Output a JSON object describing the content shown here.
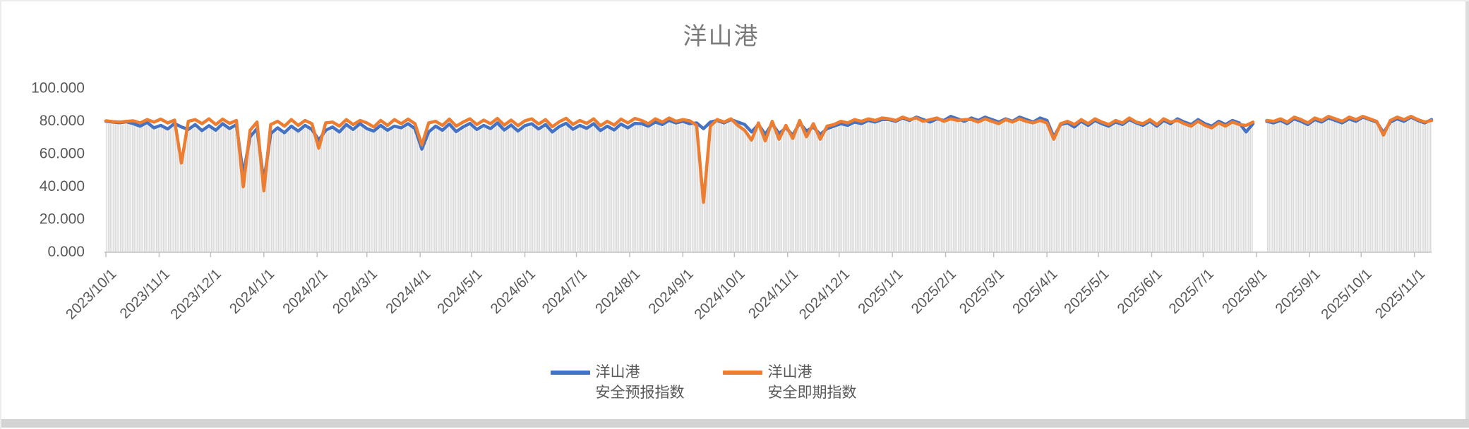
{
  "title": "洋山港",
  "colors": {
    "forecast_line": "#4472C4",
    "spot_line": "#ED7D31",
    "columns": "#DADADA",
    "axis": "#BFBFBF",
    "tick_text": "#595959",
    "title_text": "#7A7A7A",
    "window_edge": "#D3D3D3"
  },
  "legend": [
    {
      "line1": "洋山港",
      "line2": "安全预报指数"
    },
    {
      "line1": "洋山港",
      "line2": "安全即期指数"
    }
  ],
  "chart_data": {
    "type": "line",
    "title": "洋山港",
    "xlabel": "",
    "ylabel": "",
    "ylim": [
      0,
      100
    ],
    "grid": false,
    "legend_position": "bottom",
    "yticks": [
      {
        "label": "0.000",
        "value": 0
      },
      {
        "label": "20.000",
        "value": 20
      },
      {
        "label": "40.000",
        "value": 40
      },
      {
        "label": "60.000",
        "value": 60
      },
      {
        "label": "80.000",
        "value": 80
      },
      {
        "label": "100.000",
        "value": 100
      }
    ],
    "x_unit": "days since 2023/10/1",
    "x_range_days": [
      0,
      772
    ],
    "point_interval_days": 4,
    "x_ticks": [
      {
        "label": "2023/10/1",
        "day": 0
      },
      {
        "label": "2023/11/1",
        "day": 31
      },
      {
        "label": "2023/12/1",
        "day": 61
      },
      {
        "label": "2024/1/1",
        "day": 92
      },
      {
        "label": "2024/2/1",
        "day": 123
      },
      {
        "label": "2024/3/1",
        "day": 152
      },
      {
        "label": "2024/4/1",
        "day": 183
      },
      {
        "label": "2024/5/1",
        "day": 213
      },
      {
        "label": "2024/6/1",
        "day": 244
      },
      {
        "label": "2024/7/1",
        "day": 274
      },
      {
        "label": "2024/8/1",
        "day": 305
      },
      {
        "label": "2024/9/1",
        "day": 336
      },
      {
        "label": "2024/10/1",
        "day": 366
      },
      {
        "label": "2024/11/1",
        "day": 397
      },
      {
        "label": "2024/12/1",
        "day": 427
      },
      {
        "label": "2025/1/1",
        "day": 458
      },
      {
        "label": "2025/2/1",
        "day": 489
      },
      {
        "label": "2025/3/1",
        "day": 517
      },
      {
        "label": "2025/4/1",
        "day": 548
      },
      {
        "label": "2025/5/1",
        "day": 578
      },
      {
        "label": "2025/6/1",
        "day": 609
      },
      {
        "label": "2025/7/1",
        "day": 639
      },
      {
        "label": "2025/8/1",
        "day": 670
      },
      {
        "label": "2025/9/1",
        "day": 701
      },
      {
        "label": "2025/10/1",
        "day": 731
      },
      {
        "label": "2025/11/1",
        "day": 762
      }
    ],
    "columns": {
      "color": "#DADADA",
      "note": "dense daily gray columns under the lines, top tracking just below the lower of the two series; gap (no data) around 2025/8/3"
    },
    "series": [
      {
        "name": "洋山港 安全预报指数",
        "color": "#4472C4",
        "values": [
          79.5,
          79,
          78.6,
          79.2,
          78,
          76.5,
          78.8,
          75.5,
          77,
          74.8,
          78.2,
          76,
          74.5,
          77.5,
          73.8,
          76.8,
          74,
          78,
          75,
          77.5,
          47,
          70,
          75,
          42.5,
          72,
          75.5,
          72.5,
          76.5,
          73.5,
          77,
          74.5,
          68,
          74,
          76,
          73,
          77.5,
          74.5,
          78,
          75,
          73.5,
          77,
          74,
          76.5,
          75.5,
          78,
          75,
          62.5,
          73,
          76.5,
          74,
          77.8,
          73.2,
          76,
          78.2,
          74.5,
          77,
          75,
          78.5,
          74.2,
          77.2,
          73.5,
          76.8,
          78,
          74.8,
          77.5,
          73,
          76.2,
          78.3,
          74.6,
          77,
          75.2,
          78,
          73.8,
          76.5,
          74.2,
          77.8,
          75.5,
          78.2,
          78,
          76.5,
          79,
          77.5,
          80,
          78.5,
          79.5,
          78,
          78.5,
          75,
          79,
          80,
          78.5,
          80.5,
          79,
          77.5,
          73,
          77.5,
          71.5,
          78,
          72,
          75.5,
          71,
          78.5,
          73.5,
          76,
          71.5,
          75,
          76.5,
          78,
          77,
          79,
          78,
          80,
          79,
          80.5,
          80.5,
          79.5,
          81.5,
          80,
          82,
          80.5,
          79,
          81,
          80,
          82.5,
          81,
          79.5,
          81.5,
          80,
          82,
          80.5,
          79,
          81,
          79.5,
          82,
          80.5,
          79,
          81.5,
          80,
          70,
          77.5,
          78.5,
          76,
          79.5,
          77,
          80,
          78,
          76.5,
          79,
          77.5,
          80.5,
          78.5,
          77,
          79.5,
          76.5,
          80,
          78,
          81,
          79,
          77.5,
          80.5,
          78,
          76.5,
          79.5,
          77.5,
          80,
          78.5,
          73,
          78,
          null,
          79.5,
          78.5,
          80,
          78,
          81,
          79.5,
          77.5,
          80.5,
          79,
          81.5,
          80,
          78.5,
          81,
          79.5,
          82,
          80.5,
          79,
          72.5,
          79,
          81,
          79.5,
          82,
          80,
          78.5,
          80.5
        ]
      },
      {
        "name": "洋山港 安全即期指数",
        "color": "#ED7D31",
        "values": [
          79.8,
          79.3,
          79,
          79.5,
          79.8,
          78.5,
          80.5,
          79,
          80.8,
          78.5,
          80.2,
          54,
          79.5,
          80.5,
          78,
          81,
          77.5,
          80.8,
          78.2,
          80,
          39.5,
          74,
          79,
          37,
          77.5,
          79.5,
          76.5,
          80.5,
          77,
          80,
          78,
          63,
          78.5,
          79,
          76.5,
          80.5,
          77.5,
          80,
          78.5,
          76,
          80,
          77,
          80.5,
          78,
          80.8,
          78,
          65,
          78.5,
          79.5,
          77,
          80.8,
          76.5,
          79,
          81,
          77.5,
          80.2,
          78,
          81.2,
          77.2,
          80.2,
          76.8,
          79.8,
          81,
          77.8,
          80.5,
          76.2,
          79.2,
          81.3,
          77.6,
          80,
          78.2,
          81,
          76.8,
          79.5,
          77.2,
          80.8,
          78.5,
          81.2,
          80,
          78,
          81,
          79,
          81.5,
          79.5,
          80.5,
          79.8,
          77,
          30,
          76.5,
          80.5,
          79,
          81,
          77,
          74,
          68,
          78.5,
          67.5,
          79.5,
          68.5,
          77,
          69,
          80,
          70,
          78,
          68.5,
          76.5,
          77.5,
          79.5,
          78.5,
          80.5,
          79.5,
          81,
          80,
          81.5,
          81,
          80,
          82,
          80.5,
          81.5,
          79.5,
          80.5,
          81.5,
          79.5,
          81,
          80,
          80.5,
          80.5,
          79,
          81,
          79.5,
          78,
          80.5,
          79,
          81,
          79.5,
          78.5,
          80,
          78.5,
          68.5,
          78,
          79.5,
          77.5,
          80.5,
          78,
          81,
          79,
          77.5,
          80,
          78.5,
          81.5,
          79,
          78,
          80.5,
          77.5,
          81,
          79,
          80,
          78,
          76.5,
          79.5,
          77,
          75.5,
          78.5,
          76.5,
          79,
          77.5,
          77,
          79,
          null,
          80,
          79.5,
          81,
          79,
          82,
          80.5,
          78.5,
          81.5,
          80,
          82.5,
          81,
          79.5,
          82,
          80.5,
          82.5,
          81,
          79.5,
          71,
          80,
          82,
          80.5,
          82.5,
          80.5,
          79,
          80
        ]
      }
    ]
  }
}
